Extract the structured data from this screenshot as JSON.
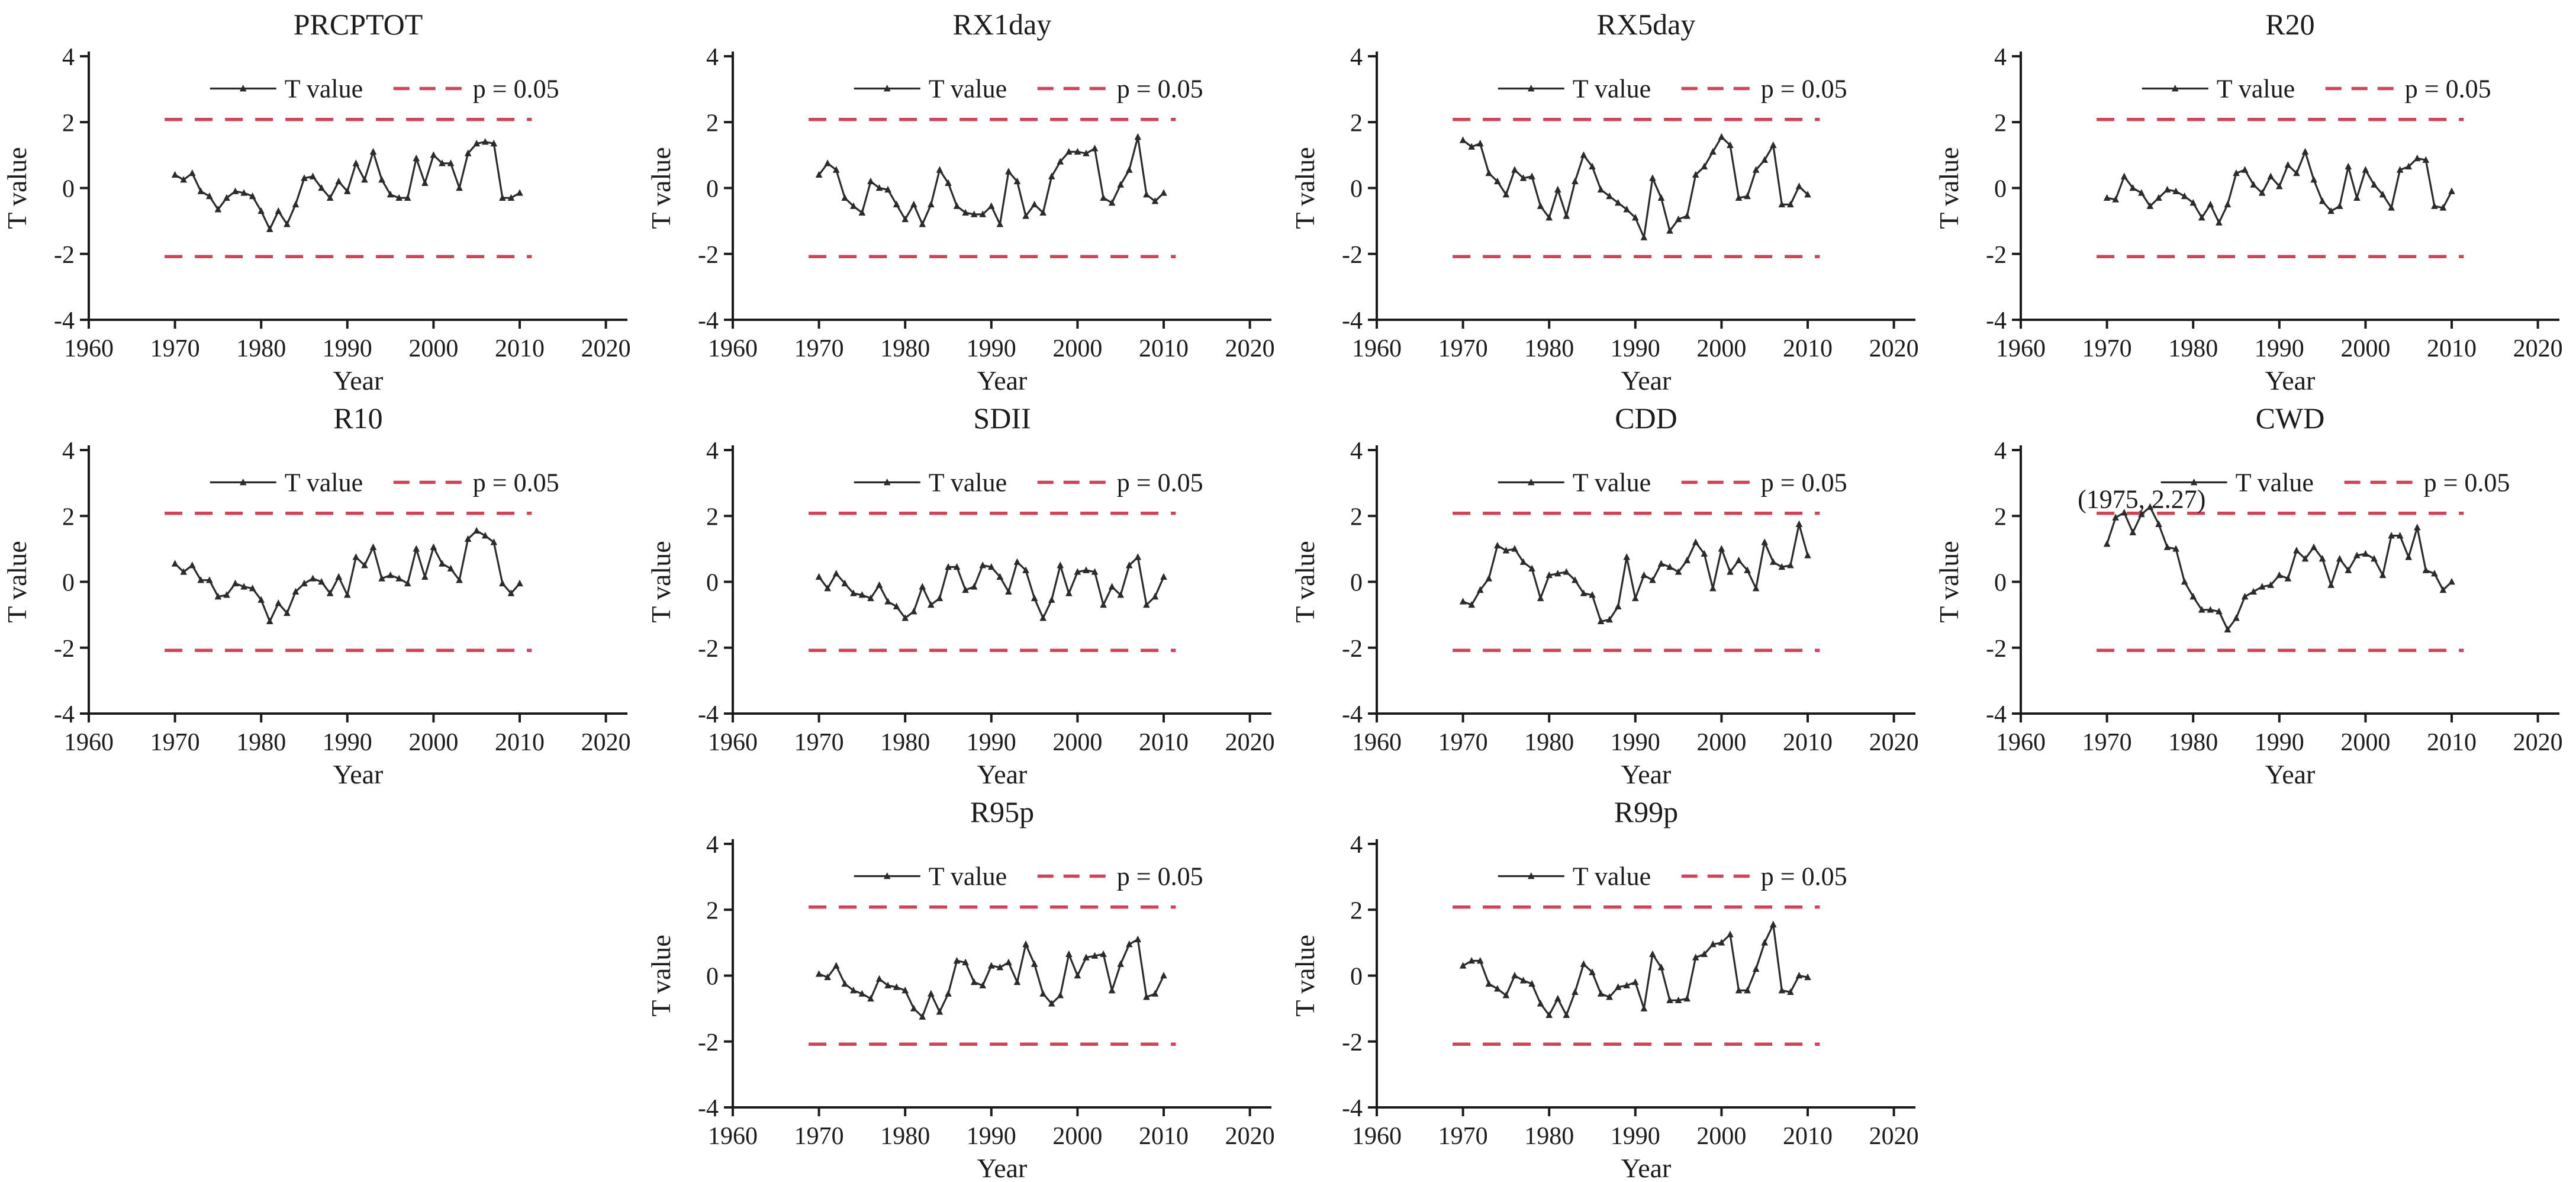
{
  "figure": {
    "background": "#ffffff",
    "axis_color": "#1c1c1c",
    "text_color": "#1c1c1c",
    "series_color": "#2b2b2b",
    "p_line_color": "#d04458",
    "xlabel": "Year",
    "ylabel": "T value",
    "xticks": [
      1960,
      1970,
      1980,
      1990,
      2000,
      2010,
      2020
    ],
    "xtick_labels": [
      "1960",
      "1970",
      "1980",
      "1990",
      "2000",
      "2010",
      "2020"
    ],
    "yticks": [
      -4,
      -2,
      0,
      2,
      4
    ],
    "ytick_labels": [
      "-4",
      "-2",
      "0",
      "2",
      "4"
    ],
    "xlim": [
      1960,
      2022.5
    ],
    "ylim": [
      -4,
      4
    ],
    "p_line_y": 2.08,
    "p_line_xspan": [
      1968.8,
      2011.4
    ],
    "legend": {
      "t_value_label": "T value",
      "p_label": "p = 0.05"
    }
  },
  "chart_data": [
    {
      "type": "line",
      "title": "PRCPTOT",
      "xlabel": "Year",
      "ylabel": "T value",
      "x_start": 1970,
      "x_step": 1,
      "values": [
        0.4,
        0.25,
        0.45,
        -0.1,
        -0.25,
        -0.65,
        -0.3,
        -0.1,
        -0.15,
        -0.25,
        -0.7,
        -1.25,
        -0.7,
        -1.1,
        -0.5,
        0.3,
        0.35,
        0.0,
        -0.3,
        0.2,
        -0.1,
        0.75,
        0.25,
        1.1,
        0.25,
        -0.2,
        -0.3,
        -0.3,
        0.9,
        0.15,
        1.0,
        0.75,
        0.75,
        0.0,
        1.05,
        1.35,
        1.4,
        1.35,
        -0.3,
        -0.3,
        -0.15
      ]
    },
    {
      "type": "line",
      "title": "RX1day",
      "xlabel": "Year",
      "ylabel": "T value",
      "x_start": 1970,
      "x_step": 1,
      "values": [
        0.4,
        0.75,
        0.55,
        -0.3,
        -0.55,
        -0.75,
        0.2,
        0.0,
        -0.05,
        -0.5,
        -0.95,
        -0.5,
        -1.1,
        -0.5,
        0.55,
        0.15,
        -0.55,
        -0.75,
        -0.8,
        -0.8,
        -0.55,
        -1.1,
        0.5,
        0.2,
        -0.85,
        -0.5,
        -0.75,
        0.35,
        0.8,
        1.1,
        1.1,
        1.05,
        1.2,
        -0.3,
        -0.45,
        0.1,
        0.55,
        1.55,
        -0.2,
        -0.4,
        -0.15
      ]
    },
    {
      "type": "line",
      "title": "RX5day",
      "xlabel": "Year",
      "ylabel": "T value",
      "x_start": 1970,
      "x_step": 1,
      "values": [
        1.45,
        1.25,
        1.35,
        0.45,
        0.2,
        -0.2,
        0.55,
        0.3,
        0.35,
        -0.55,
        -0.9,
        -0.05,
        -0.85,
        0.2,
        1.0,
        0.65,
        -0.05,
        -0.25,
        -0.45,
        -0.65,
        -0.9,
        -1.5,
        0.3,
        -0.3,
        -1.3,
        -0.95,
        -0.85,
        0.4,
        0.65,
        1.1,
        1.55,
        1.3,
        -0.3,
        -0.25,
        0.55,
        0.85,
        1.3,
        -0.5,
        -0.5,
        0.05,
        -0.2
      ]
    },
    {
      "type": "line",
      "title": "R20",
      "xlabel": "Year",
      "ylabel": "T value",
      "x_start": 1970,
      "x_step": 1,
      "values": [
        -0.3,
        -0.35,
        0.35,
        0.0,
        -0.15,
        -0.55,
        -0.3,
        -0.05,
        -0.1,
        -0.25,
        -0.45,
        -0.9,
        -0.5,
        -1.05,
        -0.5,
        0.45,
        0.55,
        0.1,
        -0.15,
        0.35,
        0.05,
        0.7,
        0.45,
        1.1,
        0.25,
        -0.4,
        -0.7,
        -0.55,
        0.65,
        -0.3,
        0.55,
        0.1,
        -0.2,
        -0.6,
        0.55,
        0.65,
        0.9,
        0.85,
        -0.55,
        -0.6,
        -0.1
      ]
    },
    {
      "type": "line",
      "title": "R10",
      "xlabel": "Year",
      "ylabel": "T value",
      "x_start": 1970,
      "x_step": 1,
      "values": [
        0.55,
        0.3,
        0.5,
        0.05,
        0.05,
        -0.45,
        -0.4,
        -0.05,
        -0.15,
        -0.2,
        -0.55,
        -1.2,
        -0.65,
        -0.95,
        -0.3,
        -0.05,
        0.1,
        0.0,
        -0.35,
        0.15,
        -0.4,
        0.75,
        0.5,
        1.05,
        0.1,
        0.2,
        0.1,
        -0.05,
        1.0,
        0.15,
        1.05,
        0.55,
        0.4,
        0.05,
        1.3,
        1.55,
        1.4,
        1.2,
        -0.05,
        -0.35,
        -0.05
      ]
    },
    {
      "type": "line",
      "title": "SDII",
      "xlabel": "Year",
      "ylabel": "T value",
      "x_start": 1970,
      "x_step": 1,
      "values": [
        0.15,
        -0.2,
        0.25,
        -0.05,
        -0.35,
        -0.4,
        -0.5,
        -0.1,
        -0.6,
        -0.75,
        -1.1,
        -0.9,
        -0.15,
        -0.7,
        -0.5,
        0.45,
        0.45,
        -0.25,
        -0.15,
        0.5,
        0.45,
        0.15,
        -0.3,
        0.6,
        0.35,
        -0.5,
        -1.1,
        -0.55,
        0.5,
        -0.35,
        0.3,
        0.35,
        0.3,
        -0.7,
        -0.15,
        -0.4,
        0.5,
        0.75,
        -0.7,
        -0.45,
        0.15
      ]
    },
    {
      "type": "line",
      "title": "CDD",
      "xlabel": "Year",
      "ylabel": "T value",
      "x_start": 1970,
      "x_step": 1,
      "values": [
        -0.6,
        -0.7,
        -0.25,
        0.1,
        1.1,
        0.95,
        1.0,
        0.6,
        0.4,
        -0.5,
        0.2,
        0.25,
        0.3,
        0.05,
        -0.35,
        -0.4,
        -1.2,
        -1.15,
        -0.75,
        0.75,
        -0.5,
        0.2,
        0.05,
        0.55,
        0.45,
        0.3,
        0.65,
        1.2,
        0.85,
        -0.2,
        1.0,
        0.3,
        0.65,
        0.35,
        -0.2,
        1.2,
        0.6,
        0.45,
        0.5,
        1.75,
        0.8
      ]
    },
    {
      "type": "line",
      "title": "CWD",
      "xlabel": "Year",
      "ylabel": "T value",
      "x_start": 1970,
      "x_step": 1,
      "legend_x_frac": 0.26,
      "annotation": {
        "text": "(1975, 2.27)",
        "point_x": 1975,
        "point_y": 2.27,
        "label_x": 1966.6,
        "label_y": 2.52
      },
      "values": [
        1.15,
        1.95,
        2.1,
        1.5,
        2.05,
        2.27,
        1.75,
        1.05,
        1.0,
        0.0,
        -0.45,
        -0.85,
        -0.85,
        -0.9,
        -1.45,
        -1.1,
        -0.45,
        -0.3,
        -0.15,
        -0.1,
        0.2,
        0.1,
        0.95,
        0.7,
        1.05,
        0.7,
        -0.1,
        0.7,
        0.35,
        0.8,
        0.85,
        0.7,
        0.2,
        1.4,
        1.4,
        0.75,
        1.65,
        0.35,
        0.25,
        -0.25,
        0.0
      ]
    },
    {
      "type": "line",
      "title": "R95p",
      "xlabel": "Year",
      "ylabel": "T value",
      "x_start": 1970,
      "x_step": 1,
      "values": [
        0.05,
        -0.05,
        0.3,
        -0.25,
        -0.45,
        -0.55,
        -0.7,
        -0.1,
        -0.3,
        -0.35,
        -0.45,
        -1.0,
        -1.25,
        -0.55,
        -1.1,
        -0.55,
        0.45,
        0.4,
        -0.2,
        -0.3,
        0.3,
        0.25,
        0.4,
        -0.2,
        0.95,
        0.35,
        -0.55,
        -0.85,
        -0.6,
        0.65,
        0.0,
        0.55,
        0.6,
        0.65,
        -0.45,
        0.35,
        0.95,
        1.1,
        -0.65,
        -0.55,
        0.0
      ]
    },
    {
      "type": "line",
      "title": "R99p",
      "xlabel": "Year",
      "ylabel": "T value",
      "x_start": 1970,
      "x_step": 1,
      "values": [
        0.3,
        0.45,
        0.45,
        -0.25,
        -0.4,
        -0.6,
        0.0,
        -0.15,
        -0.25,
        -0.85,
        -1.2,
        -0.7,
        -1.2,
        -0.5,
        0.35,
        0.1,
        -0.55,
        -0.65,
        -0.35,
        -0.3,
        -0.2,
        -1.0,
        0.65,
        0.25,
        -0.75,
        -0.75,
        -0.7,
        0.55,
        0.65,
        0.95,
        1.0,
        1.25,
        -0.45,
        -0.45,
        0.2,
        1.0,
        1.55,
        -0.45,
        -0.5,
        0.0,
        -0.05
      ]
    }
  ]
}
